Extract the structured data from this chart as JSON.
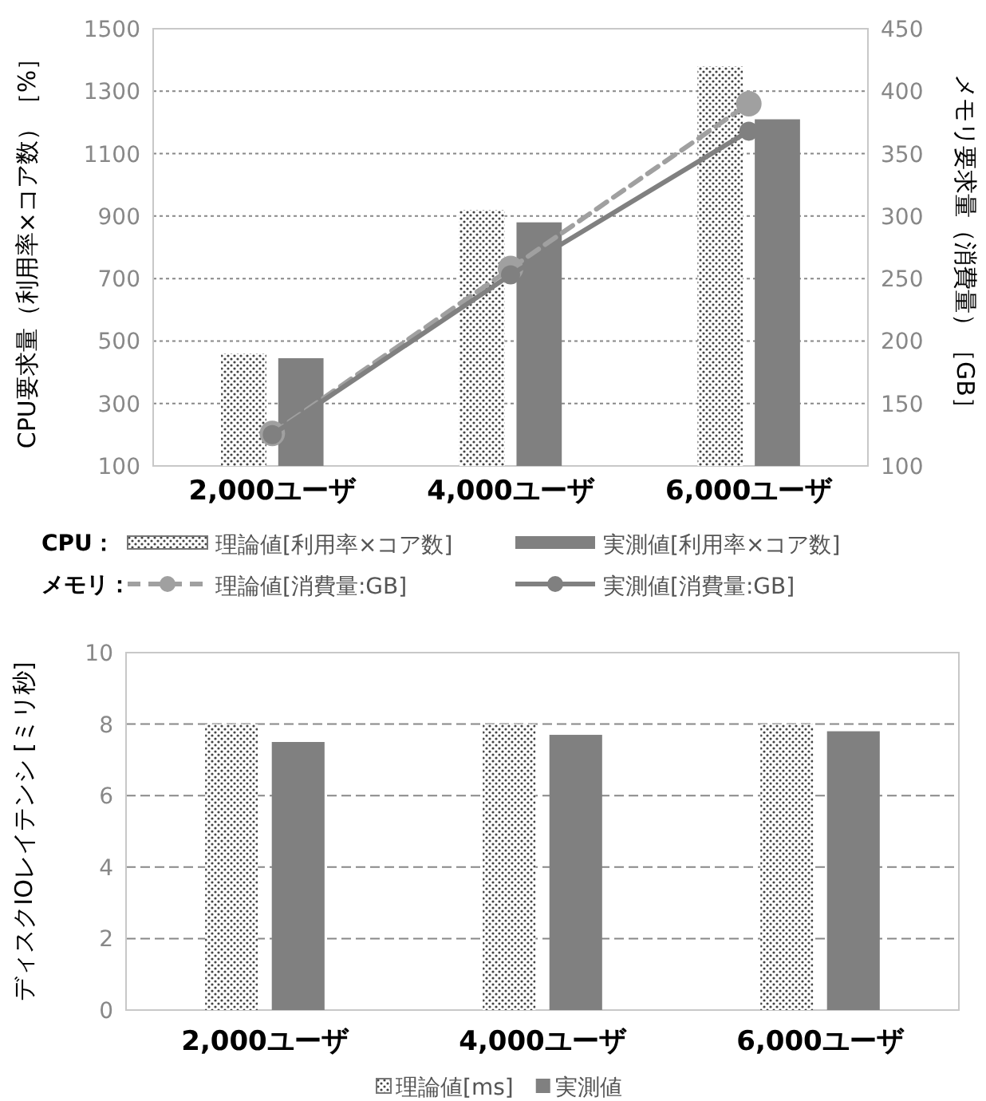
{
  "chart_data": [
    {
      "type": "bar",
      "categories": [
        "2,000ユーザ",
        "4,000ユーザ",
        "6,000ユーザ"
      ],
      "ylabel": "CPU要求量（利用率×コア数）［%］",
      "y2label": "メモリ要求量（消費量）［GB］",
      "ylim": [
        100,
        1500
      ],
      "yticks": [
        100,
        300,
        500,
        700,
        900,
        1100,
        1300,
        1500
      ],
      "y2lim": [
        100,
        450
      ],
      "y2ticks": [
        100,
        150,
        200,
        250,
        300,
        350,
        400,
        450
      ],
      "grid": "y",
      "legend": "bottom",
      "annotations": [
        "CPU：",
        "メモリ："
      ],
      "series": [
        {
          "name": "理論値[利用率×コア数]",
          "color": "#ffffff",
          "values": [
            460,
            920,
            1380
          ]
        },
        {
          "name": "実測値[利用率×コア数]",
          "color": "#808080",
          "values": [
            445,
            880,
            1210
          ]
        },
        {
          "name": "理論値[消費量:GB]",
          "type": "line",
          "axis": "y2",
          "color": "#a0a0a0",
          "line_style": "dashed",
          "marker": "circle",
          "values": [
            126,
            258,
            390
          ]
        },
        {
          "name": "実測値[消費量:GB]",
          "type": "line",
          "axis": "y2",
          "color": "#808080",
          "line_style": "solid",
          "marker": "circle",
          "values": [
            125,
            253,
            368
          ]
        }
      ]
    },
    {
      "type": "bar",
      "categories": [
        "2,000ユーザ",
        "4,000ユーザ",
        "6,000ユーザ"
      ],
      "ylabel": "ディスクIOレイテンシ [ミリ秒]",
      "ylim": [
        0,
        10
      ],
      "yticks": [
        0,
        2,
        4,
        6,
        8,
        10
      ],
      "grid": "y",
      "legend": "bottom",
      "series": [
        {
          "name": "理論値[ms]",
          "color": "#ffffff",
          "values": [
            8,
            8,
            8
          ]
        },
        {
          "name": "実測値",
          "color": "#808080",
          "values": [
            7.5,
            7.7,
            7.8
          ]
        }
      ]
    }
  ]
}
